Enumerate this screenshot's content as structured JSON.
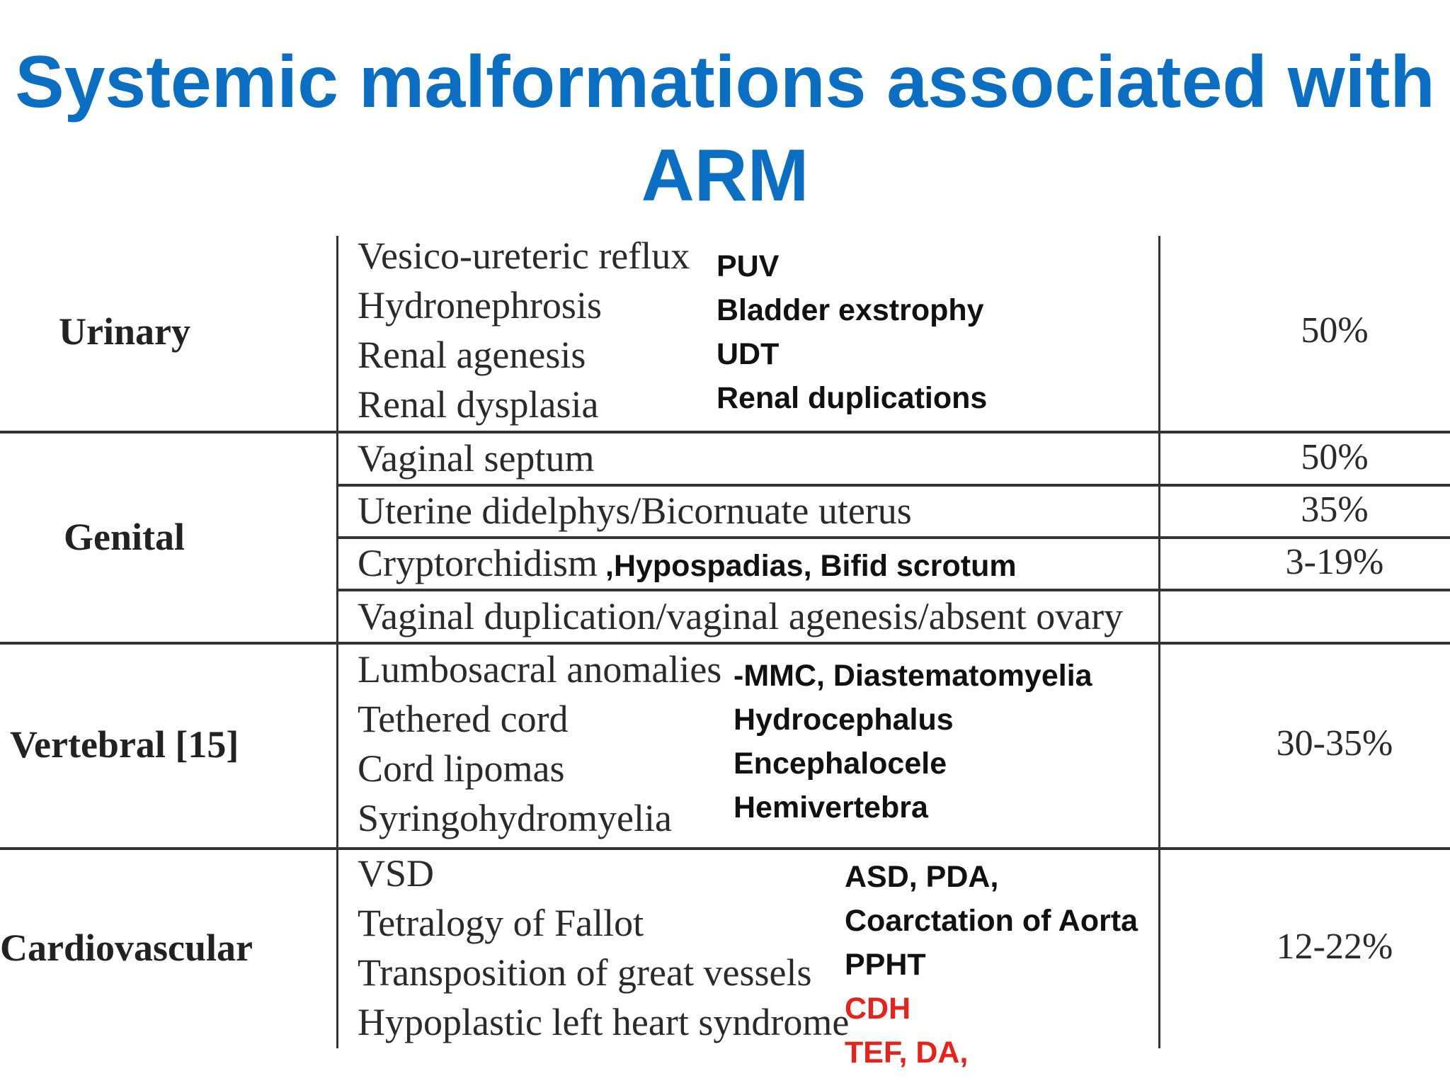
{
  "title": {
    "line1": "Systemic malformations associated with",
    "line2": "ARM"
  },
  "rows": {
    "urinary": {
      "category": "Urinary",
      "items": [
        "Vesico-ureteric reflux",
        "Hydronephrosis",
        "Renal agenesis",
        "Renal dysplasia"
      ],
      "notes": [
        "PUV",
        "Bladder exstrophy",
        "UDT",
        "Renal duplications"
      ],
      "percent": "50%"
    },
    "genital": {
      "category": "Genital",
      "items": [
        "Vaginal septum",
        "Uterine didelphys/Bicornuate uterus",
        "Cryptorchidism",
        "Vaginal duplication/vaginal agenesis/absent ovary"
      ],
      "percents": [
        "50%",
        "35%",
        "3-19%"
      ],
      "note": ",Hypospadias, Bifid scrotum"
    },
    "vertebral": {
      "category": "Vertebral [15]",
      "items": [
        "Lumbosacral anomalies",
        "Tethered cord",
        "Cord lipomas",
        "Syringohydromyelia"
      ],
      "notes": [
        "-MMC, Diastematomyelia",
        "Hydrocephalus",
        "Encephalocele",
        "Hemivertebra"
      ],
      "percent": "30-35%"
    },
    "cardiovascular": {
      "category": "Cardiovascular",
      "items": [
        "VSD",
        "Tetralogy of Fallot",
        "Transposition of great vessels",
        "Hypoplastic left heart syndrome"
      ],
      "notes": [
        "ASD, PDA,",
        "Coarctation of Aorta",
        "PPHT"
      ],
      "notes_red": [
        "CDH",
        "TEF, DA,"
      ],
      "percent": "12-22%"
    }
  },
  "colors": {
    "title": "#0a6fc2",
    "highlight": "#e8221a"
  }
}
